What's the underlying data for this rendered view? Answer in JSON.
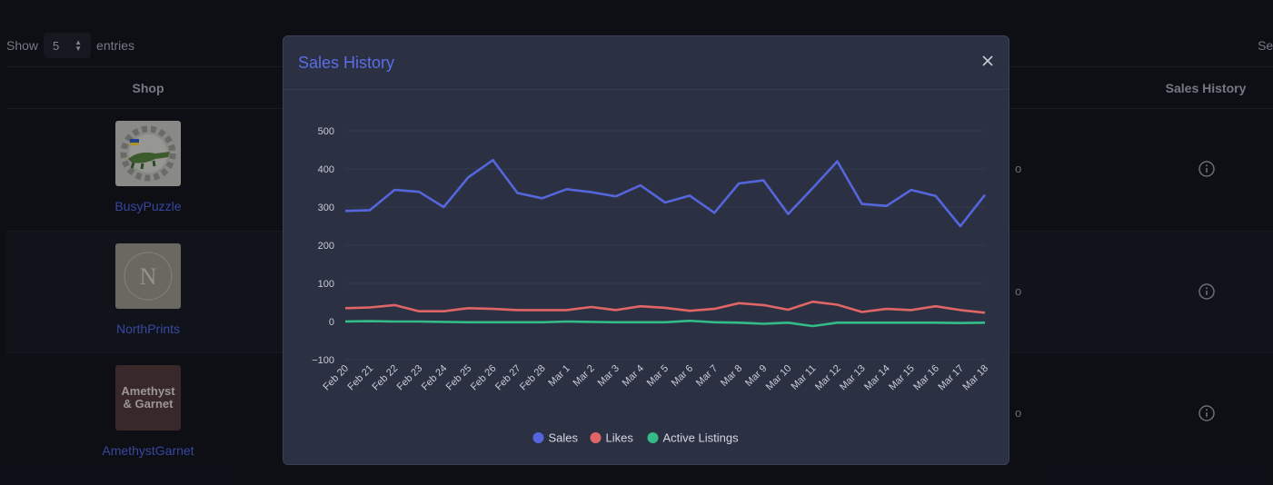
{
  "controls": {
    "show_label": "Show",
    "entries_value": "5",
    "entries_label": "entries",
    "search_label": "Sea"
  },
  "table": {
    "headers": {
      "shop": "Shop",
      "sales_history": "Sales History"
    },
    "rows": [
      {
        "name": "BusyPuzzle",
        "image": "crocodile-gear-logo",
        "partial": "o"
      },
      {
        "name": "NorthPrints",
        "image": "n-monogram-logo",
        "image_text": "N",
        "partial": "o"
      },
      {
        "name": "AmethystGarnet",
        "image": "amethyst-garnet-logo",
        "image_text": "Amethyst & Garnet",
        "partial": "o"
      }
    ]
  },
  "modal": {
    "title": "Sales History",
    "close_icon": "close-icon"
  },
  "colors": {
    "sales": "#5566dd",
    "likes": "#e06666",
    "active_listings": "#33bb88",
    "accent": "#5a6ee6"
  },
  "chart_data": {
    "type": "line",
    "title": "",
    "xlabel": "",
    "ylabel": "",
    "ylim": [
      -100,
      500
    ],
    "yticks": [
      "500",
      "400",
      "300",
      "200",
      "100",
      "0",
      "−100"
    ],
    "legend_position": "bottom",
    "grid": true,
    "categories": [
      "Feb 20",
      "Feb 21",
      "Feb 22",
      "Feb 23",
      "Feb 24",
      "Feb 25",
      "Feb 26",
      "Feb 27",
      "Feb 28",
      "Mar 1",
      "Mar 2",
      "Mar 3",
      "Mar 4",
      "Mar 5",
      "Mar 6",
      "Mar 7",
      "Mar 8",
      "Mar 9",
      "Mar 10",
      "Mar 11",
      "Mar 12",
      "Mar 13",
      "Mar 14",
      "Mar 15",
      "Mar 16",
      "Mar 17",
      "Mar 18"
    ],
    "series": [
      {
        "name": "Sales",
        "color": "#5566dd",
        "values": [
          290,
          292,
          345,
          340,
          300,
          378,
          423,
          337,
          323,
          347,
          339,
          328,
          357,
          312,
          330,
          285,
          362,
          370,
          282,
          350,
          420,
          308,
          303,
          345,
          329,
          250,
          332
        ]
      },
      {
        "name": "Likes",
        "color": "#e06666",
        "values": [
          35,
          37,
          43,
          27,
          27,
          35,
          33,
          30,
          30,
          30,
          38,
          30,
          40,
          36,
          28,
          33,
          48,
          43,
          31,
          52,
          44,
          25,
          33,
          30,
          40,
          30,
          23
        ]
      },
      {
        "name": "Active Listings",
        "color": "#33bb88",
        "values": [
          0,
          1,
          0,
          0,
          -1,
          -2,
          -2,
          -2,
          -2,
          0,
          -1,
          -2,
          -2,
          -2,
          2,
          -2,
          -3,
          -6,
          -3,
          -12,
          -3,
          -3,
          -3,
          -3,
          -3,
          -4,
          -3
        ]
      }
    ]
  }
}
